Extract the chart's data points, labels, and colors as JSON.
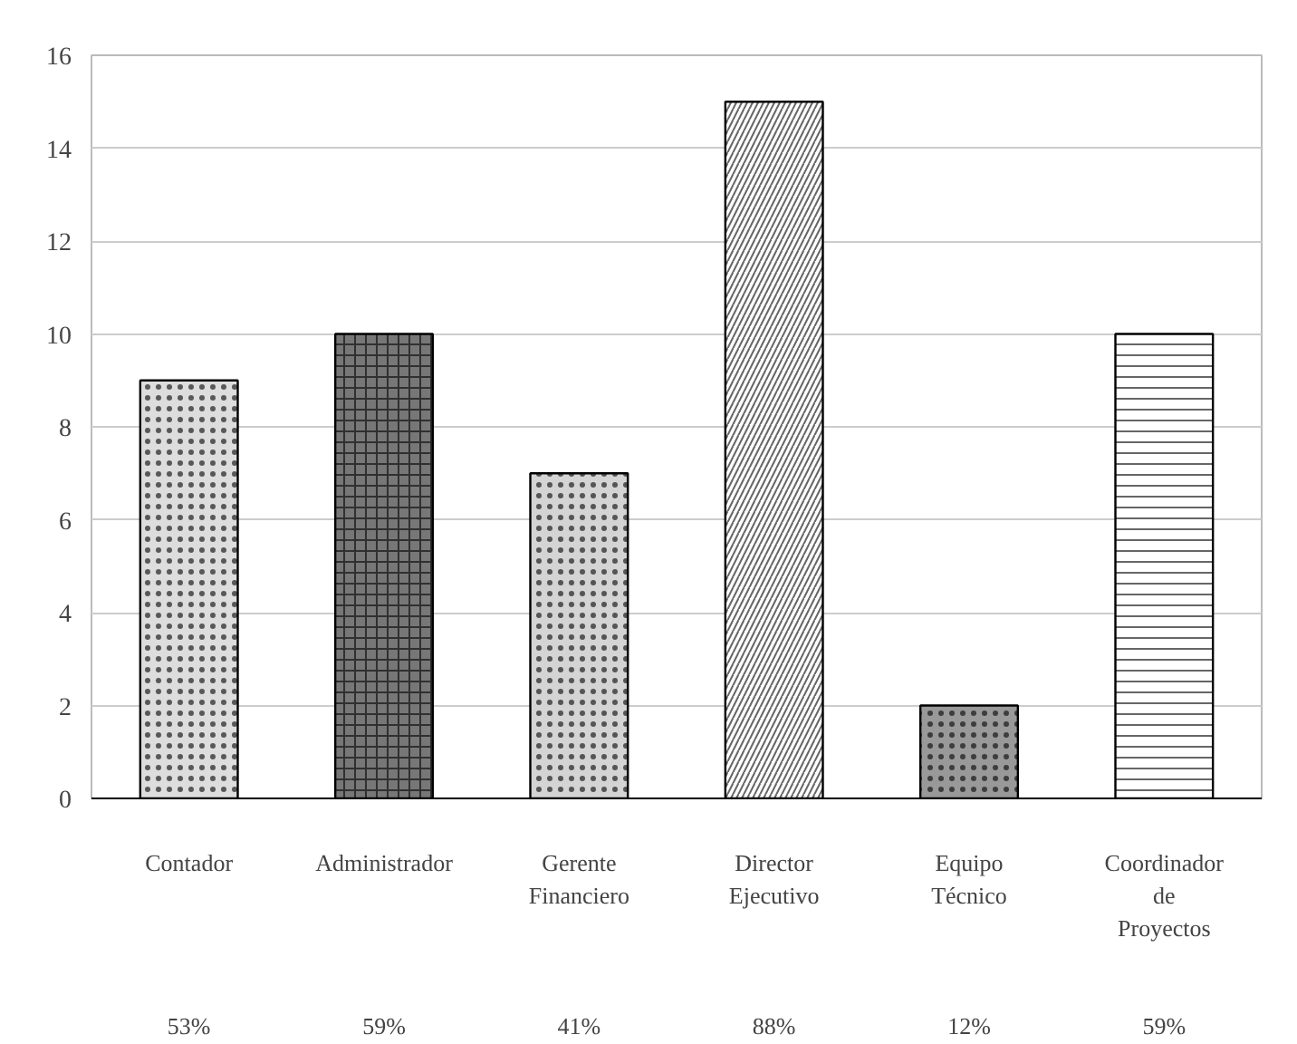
{
  "chart_data": {
    "type": "bar",
    "categories": [
      "Contador",
      "Administrador",
      "Gerente Financiero",
      "Director Ejecutivo",
      "Equipo Técnico",
      "Coordinador de Proyectos"
    ],
    "values": [
      9,
      10,
      7,
      15,
      2,
      10
    ],
    "colors": [
      "#dddddd",
      "#777777",
      "#d4d4d4",
      "#ffffff",
      "#999999",
      "#ffffff"
    ],
    "ylim": [
      0,
      16
    ],
    "yticks": [
      0,
      2,
      4,
      6,
      8,
      10,
      12,
      14,
      16
    ],
    "grid": "y",
    "annotations": [
      "53%",
      "59%",
      "41%",
      "88%",
      "12%",
      "59%"
    ]
  }
}
